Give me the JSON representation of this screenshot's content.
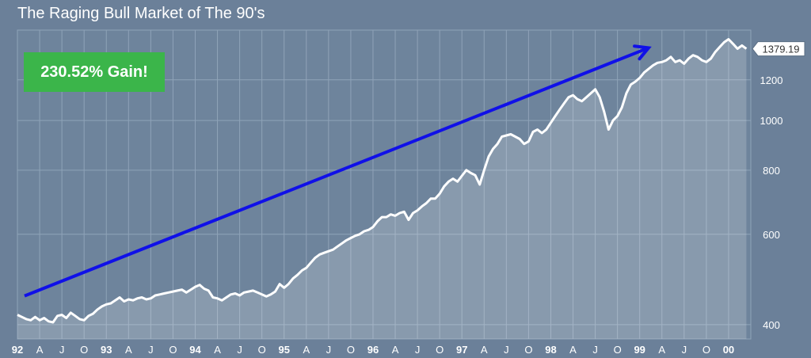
{
  "chart_data": {
    "type": "area",
    "title": "The Raging Bull Market of The 90's",
    "xlabel": "",
    "ylabel": "",
    "y_scale": "log",
    "ylim": [
      375,
      1500
    ],
    "xlim": [
      1992.0,
      2000.25
    ],
    "grid": true,
    "yticks": [
      400,
      600,
      800,
      1000,
      1200
    ],
    "xticks": [
      {
        "x": 1992.0,
        "label": "92",
        "bold": true
      },
      {
        "x": 1992.25,
        "label": "A",
        "bold": false
      },
      {
        "x": 1992.5,
        "label": "J",
        "bold": false
      },
      {
        "x": 1992.75,
        "label": "O",
        "bold": false
      },
      {
        "x": 1993.0,
        "label": "93",
        "bold": true
      },
      {
        "x": 1993.25,
        "label": "A",
        "bold": false
      },
      {
        "x": 1993.5,
        "label": "J",
        "bold": false
      },
      {
        "x": 1993.75,
        "label": "O",
        "bold": false
      },
      {
        "x": 1994.0,
        "label": "94",
        "bold": true
      },
      {
        "x": 1994.25,
        "label": "A",
        "bold": false
      },
      {
        "x": 1994.5,
        "label": "J",
        "bold": false
      },
      {
        "x": 1994.75,
        "label": "O",
        "bold": false
      },
      {
        "x": 1995.0,
        "label": "95",
        "bold": true
      },
      {
        "x": 1995.25,
        "label": "A",
        "bold": false
      },
      {
        "x": 1995.5,
        "label": "J",
        "bold": false
      },
      {
        "x": 1995.75,
        "label": "O",
        "bold": false
      },
      {
        "x": 1996.0,
        "label": "96",
        "bold": true
      },
      {
        "x": 1996.25,
        "label": "A",
        "bold": false
      },
      {
        "x": 1996.5,
        "label": "J",
        "bold": false
      },
      {
        "x": 1996.75,
        "label": "O",
        "bold": false
      },
      {
        "x": 1997.0,
        "label": "97",
        "bold": true
      },
      {
        "x": 1997.25,
        "label": "A",
        "bold": false
      },
      {
        "x": 1997.5,
        "label": "J",
        "bold": false
      },
      {
        "x": 1997.75,
        "label": "O",
        "bold": false
      },
      {
        "x": 1998.0,
        "label": "98",
        "bold": true
      },
      {
        "x": 1998.25,
        "label": "A",
        "bold": false
      },
      {
        "x": 1998.5,
        "label": "J",
        "bold": false
      },
      {
        "x": 1998.75,
        "label": "O",
        "bold": false
      },
      {
        "x": 1999.0,
        "label": "99",
        "bold": true
      },
      {
        "x": 1999.25,
        "label": "A",
        "bold": false
      },
      {
        "x": 1999.5,
        "label": "J",
        "bold": false
      },
      {
        "x": 1999.75,
        "label": "O",
        "bold": false
      },
      {
        "x": 2000.0,
        "label": "00",
        "bold": true
      }
    ],
    "last_value_label": "1379.19",
    "annotation": {
      "text": "230.52% Gain!",
      "arrow_from": {
        "x": 1992.08,
        "y": 455
      },
      "arrow_to": {
        "x": 1999.1,
        "y": 1385
      }
    },
    "series": [
      {
        "name": "",
        "x": [
          1992.0,
          1992.05,
          1992.1,
          1992.15,
          1992.2,
          1992.25,
          1992.3,
          1992.35,
          1992.4,
          1992.45,
          1992.5,
          1992.55,
          1992.6,
          1992.65,
          1992.7,
          1992.75,
          1992.8,
          1992.85,
          1992.9,
          1992.95,
          1993.0,
          1993.05,
          1993.1,
          1993.15,
          1993.2,
          1993.25,
          1993.3,
          1993.35,
          1993.4,
          1993.45,
          1993.5,
          1993.55,
          1993.6,
          1993.65,
          1993.7,
          1993.75,
          1993.8,
          1993.85,
          1993.9,
          1993.95,
          1994.0,
          1994.05,
          1994.1,
          1994.15,
          1994.2,
          1994.25,
          1994.3,
          1994.35,
          1994.4,
          1994.45,
          1994.5,
          1994.55,
          1994.6,
          1994.65,
          1994.7,
          1994.75,
          1994.8,
          1994.85,
          1994.9,
          1994.95,
          1995.0,
          1995.05,
          1995.1,
          1995.15,
          1995.2,
          1995.25,
          1995.3,
          1995.35,
          1995.4,
          1995.45,
          1995.5,
          1995.55,
          1995.6,
          1995.65,
          1995.7,
          1995.75,
          1995.8,
          1995.85,
          1995.9,
          1995.95,
          1996.0,
          1996.05,
          1996.1,
          1996.15,
          1996.2,
          1996.25,
          1996.3,
          1996.35,
          1996.4,
          1996.45,
          1996.5,
          1996.55,
          1996.6,
          1996.65,
          1996.7,
          1996.75,
          1996.8,
          1996.85,
          1996.9,
          1996.95,
          1997.0,
          1997.05,
          1997.1,
          1997.15,
          1997.2,
          1997.25,
          1997.3,
          1997.35,
          1997.4,
          1997.45,
          1997.5,
          1997.55,
          1997.6,
          1997.65,
          1997.7,
          1997.75,
          1997.8,
          1997.85,
          1997.9,
          1997.95,
          1998.0,
          1998.05,
          1998.1,
          1998.15,
          1998.2,
          1998.25,
          1998.3,
          1998.35,
          1998.4,
          1998.45,
          1998.5,
          1998.55,
          1998.6,
          1998.65,
          1998.7,
          1998.75,
          1998.8,
          1998.85,
          1998.9,
          1998.95,
          1999.0,
          1999.05,
          1999.1,
          1999.15,
          1999.2,
          1999.25,
          1999.3,
          1999.35,
          1999.4,
          1999.45,
          1999.5,
          1999.55,
          1999.6,
          1999.65,
          1999.7,
          1999.75,
          1999.8,
          1999.85,
          1999.9,
          1999.95,
          2000.0,
          2000.05,
          2000.1,
          2000.15,
          2000.2
        ],
        "values": [
          418,
          414,
          410,
          408,
          414,
          408,
          412,
          406,
          404,
          416,
          418,
          412,
          422,
          416,
          410,
          408,
          416,
          420,
          428,
          434,
          438,
          440,
          446,
          452,
          444,
          448,
          446,
          450,
          452,
          448,
          450,
          456,
          458,
          460,
          462,
          464,
          466,
          468,
          462,
          468,
          474,
          478,
          470,
          466,
          452,
          450,
          446,
          452,
          458,
          460,
          456,
          462,
          464,
          466,
          462,
          458,
          454,
          458,
          464,
          480,
          472,
          480,
          492,
          500,
          510,
          516,
          528,
          540,
          548,
          552,
          556,
          560,
          568,
          576,
          584,
          590,
          596,
          600,
          608,
          612,
          620,
          636,
          648,
          648,
          656,
          652,
          660,
          664,
          640,
          660,
          668,
          680,
          690,
          704,
          704,
          720,
          744,
          760,
          770,
          760,
          780,
          800,
          790,
          782,
          750,
          800,
          850,
          880,
          900,
          930,
          935,
          940,
          930,
          920,
          900,
          910,
          950,
          960,
          945,
          960,
          990,
          1020,
          1050,
          1080,
          1110,
          1120,
          1100,
          1090,
          1110,
          1130,
          1150,
          1110,
          1040,
          960,
          1000,
          1020,
          1060,
          1130,
          1175,
          1190,
          1210,
          1240,
          1260,
          1280,
          1295,
          1300,
          1310,
          1330,
          1300,
          1310,
          1290,
          1320,
          1340,
          1330,
          1310,
          1300,
          1320,
          1360,
          1390,
          1420,
          1440,
          1410,
          1380,
          1400,
          1379.19
        ]
      }
    ]
  }
}
